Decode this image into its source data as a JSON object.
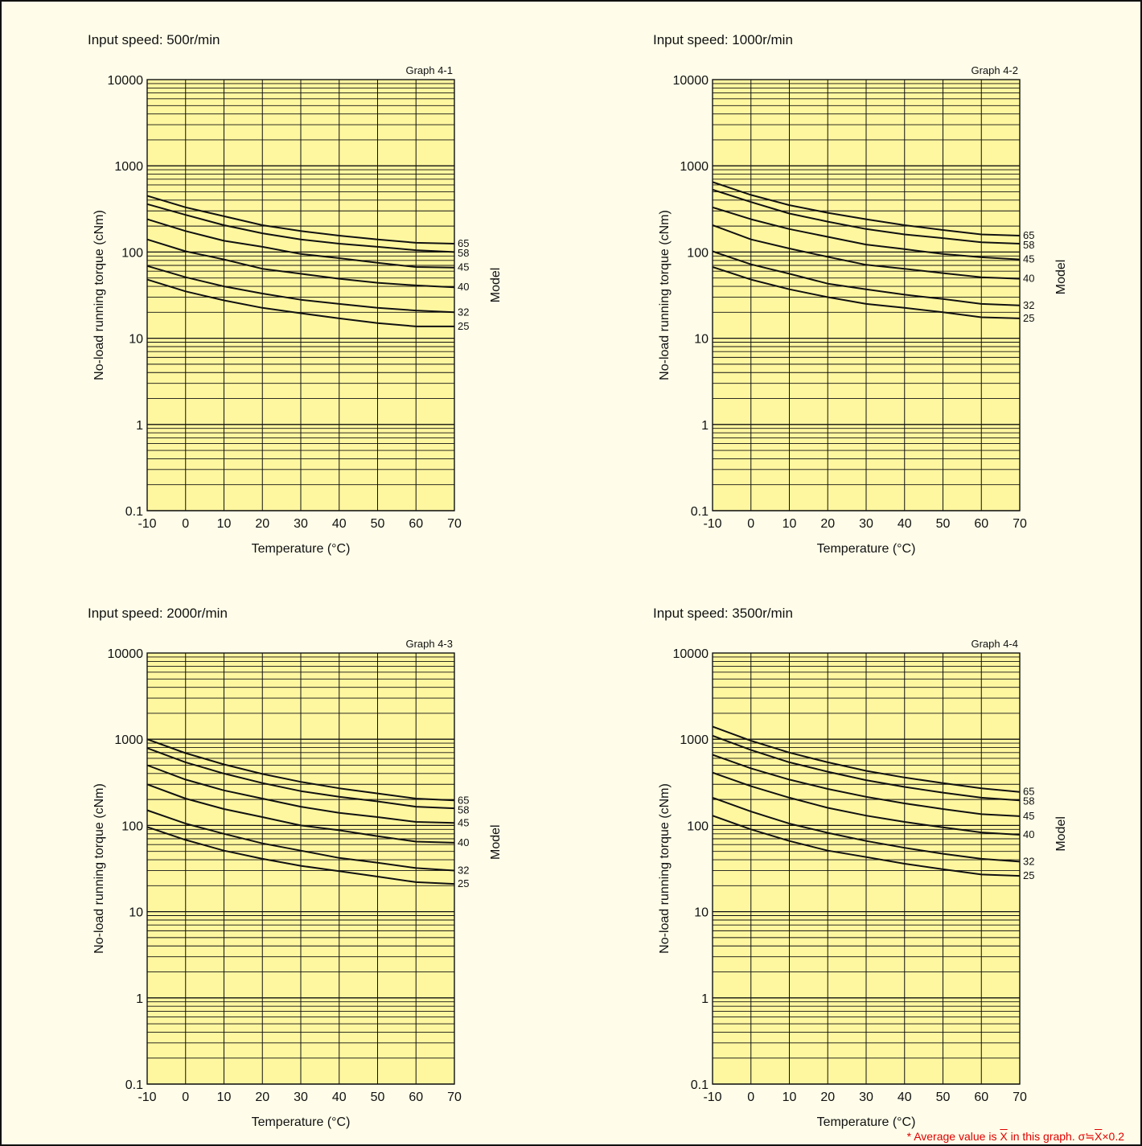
{
  "footnote": {
    "prefix": "* Average value is ",
    "xbar": "X",
    "middle": " in this graph. σ≒",
    "xbar2": "X",
    "suffix": "×0.2"
  },
  "chart_data": [
    {
      "type": "line",
      "speed_label": "Input speed: 500r/min",
      "graph_label": "Graph 4-1",
      "xlabel": "Temperature (°C)",
      "ylabel": "No-load running torque (cNm)",
      "legend_title": "Model",
      "yscale": "log",
      "xlim": [
        -10,
        70
      ],
      "ylim": [
        0.1,
        10000
      ],
      "x_ticks": [
        "-10",
        "0",
        "10",
        "20",
        "30",
        "40",
        "50",
        "60",
        "70"
      ],
      "y_ticks": [
        "0.1",
        "1",
        "10",
        "100",
        "1000",
        "10000"
      ],
      "grid": true,
      "x": [
        -10,
        0,
        10,
        20,
        30,
        40,
        50,
        60,
        70
      ],
      "series": [
        {
          "name": "65",
          "values": [
            450,
            330,
            260,
            205,
            175,
            155,
            140,
            128,
            125
          ]
        },
        {
          "name": "58",
          "values": [
            360,
            270,
            205,
            165,
            140,
            125,
            115,
            105,
            100
          ]
        },
        {
          "name": "45",
          "values": [
            240,
            175,
            135,
            115,
            95,
            85,
            75,
            67,
            66
          ]
        },
        {
          "name": "40",
          "values": [
            140,
            102,
            82,
            64,
            56,
            49,
            44,
            41,
            39
          ]
        },
        {
          "name": "32",
          "values": [
            69,
            51,
            40,
            33,
            28,
            25,
            22.5,
            21,
            20
          ]
        },
        {
          "name": "25",
          "values": [
            48,
            35,
            27.5,
            22.5,
            19.5,
            17,
            15,
            13.7,
            13.7
          ]
        }
      ]
    },
    {
      "type": "line",
      "speed_label": "Input speed: 1000r/min",
      "graph_label": "Graph 4-2",
      "xlabel": "Temperature (°C)",
      "ylabel": "No-load running torque (cNm)",
      "legend_title": "Model",
      "yscale": "log",
      "xlim": [
        -10,
        70
      ],
      "ylim": [
        0.1,
        10000
      ],
      "x_ticks": [
        "-10",
        "0",
        "10",
        "20",
        "30",
        "40",
        "50",
        "60",
        "70"
      ],
      "y_ticks": [
        "0.1",
        "1",
        "10",
        "100",
        "1000",
        "10000"
      ],
      "grid": true,
      "x": [
        -10,
        0,
        10,
        20,
        30,
        40,
        50,
        60,
        70
      ],
      "series": [
        {
          "name": "65",
          "values": [
            650,
            460,
            350,
            285,
            240,
            205,
            180,
            160,
            155
          ]
        },
        {
          "name": "58",
          "values": [
            530,
            380,
            280,
            225,
            185,
            160,
            145,
            130,
            125
          ]
        },
        {
          "name": "45",
          "values": [
            330,
            240,
            185,
            150,
            122,
            108,
            95,
            87,
            82
          ]
        },
        {
          "name": "40",
          "values": [
            205,
            140,
            110,
            88,
            71,
            64,
            57,
            51,
            49
          ]
        },
        {
          "name": "32",
          "values": [
            102,
            72,
            56,
            43,
            37,
            32,
            28.5,
            25,
            24
          ]
        },
        {
          "name": "25",
          "values": [
            67,
            48,
            37,
            30,
            25,
            22.5,
            20,
            17.5,
            17
          ]
        }
      ]
    },
    {
      "type": "line",
      "speed_label": "Input speed: 2000r/min",
      "graph_label": "Graph 4-3",
      "xlabel": "Temperature (°C)",
      "ylabel": "No-load running torque (cNm)",
      "legend_title": "Model",
      "yscale": "log",
      "xlim": [
        -10,
        70
      ],
      "ylim": [
        0.1,
        10000
      ],
      "x_ticks": [
        "-10",
        "0",
        "10",
        "20",
        "30",
        "40",
        "50",
        "60",
        "70"
      ],
      "y_ticks": [
        "0.1",
        "1",
        "10",
        "100",
        "1000",
        "10000"
      ],
      "grid": true,
      "x": [
        -10,
        0,
        10,
        20,
        30,
        40,
        50,
        60,
        70
      ],
      "series": [
        {
          "name": "65",
          "values": [
            1000,
            690,
            510,
            395,
            320,
            270,
            235,
            205,
            195
          ]
        },
        {
          "name": "58",
          "values": [
            790,
            540,
            400,
            310,
            250,
            215,
            190,
            165,
            158
          ]
        },
        {
          "name": "45",
          "values": [
            500,
            340,
            255,
            205,
            165,
            140,
            125,
            110,
            107
          ]
        },
        {
          "name": "40",
          "values": [
            300,
            205,
            155,
            125,
            100,
            88,
            75,
            65,
            63
          ]
        },
        {
          "name": "32",
          "values": [
            150,
            105,
            80,
            62,
            51,
            42,
            37,
            32,
            30
          ]
        },
        {
          "name": "25",
          "values": [
            96,
            68,
            51,
            41,
            34,
            29.5,
            25.5,
            22,
            21
          ]
        }
      ]
    },
    {
      "type": "line",
      "speed_label": "Input speed: 3500r/min",
      "graph_label": "Graph 4-4",
      "xlabel": "Temperature (°C)",
      "ylabel": "No-load running torque (cNm)",
      "legend_title": "Model",
      "yscale": "log",
      "xlim": [
        -10,
        70
      ],
      "ylim": [
        0.1,
        10000
      ],
      "x_ticks": [
        "-10",
        "0",
        "10",
        "20",
        "30",
        "40",
        "50",
        "60",
        "70"
      ],
      "y_ticks": [
        "0.1",
        "1",
        "10",
        "100",
        "1000",
        "10000"
      ],
      "grid": true,
      "x": [
        -10,
        0,
        10,
        20,
        30,
        40,
        50,
        60,
        70
      ],
      "series": [
        {
          "name": "65",
          "values": [
            1400,
            960,
            700,
            540,
            430,
            360,
            310,
            270,
            245
          ]
        },
        {
          "name": "58",
          "values": [
            1100,
            750,
            540,
            420,
            335,
            280,
            240,
            210,
            195
          ]
        },
        {
          "name": "45",
          "values": [
            660,
            460,
            340,
            265,
            215,
            180,
            155,
            135,
            128
          ]
        },
        {
          "name": "40",
          "values": [
            410,
            285,
            210,
            160,
            130,
            110,
            95,
            83,
            78
          ]
        },
        {
          "name": "32",
          "values": [
            210,
            145,
            105,
            82,
            66,
            55,
            47,
            41,
            38
          ]
        },
        {
          "name": "25",
          "values": [
            130,
            90,
            66,
            51,
            43,
            36,
            31,
            27,
            26
          ]
        }
      ]
    }
  ]
}
